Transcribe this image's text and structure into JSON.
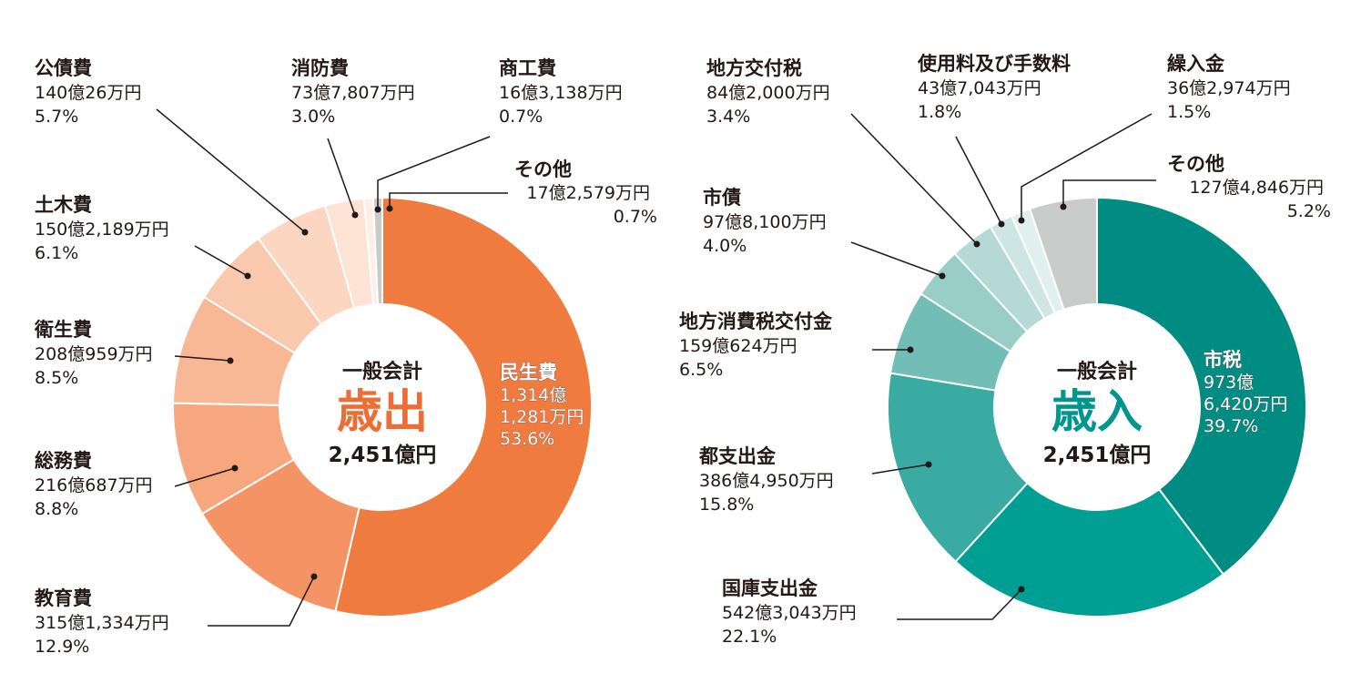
{
  "chart_data": [
    {
      "type": "pie",
      "title": "一般会計",
      "heading": "歳出",
      "total": "2,451億円",
      "colors": {
        "accent": "#ed6d35"
      },
      "slices": [
        {
          "name": "民生費",
          "amount": "1,314億1,281万円",
          "amount_lines": [
            "1,314億",
            "1,281万円"
          ],
          "percent_label": "53.6%",
          "value": 53.6,
          "color": "#f07b3f"
        },
        {
          "name": "教育費",
          "amount": "315億1,334万円",
          "percent_label": "12.9%",
          "value": 12.9,
          "color": "#f49464"
        },
        {
          "name": "総務費",
          "amount": "216億687万円",
          "percent_label": "8.8%",
          "value": 8.8,
          "color": "#f6a77e"
        },
        {
          "name": "衛生費",
          "amount": "208億959万円",
          "percent_label": "8.5%",
          "value": 8.5,
          "color": "#f8b896"
        },
        {
          "name": "土木費",
          "amount": "150億2,189万円",
          "percent_label": "6.1%",
          "value": 6.1,
          "color": "#fac8ad"
        },
        {
          "name": "公債費",
          "amount": "140億26万円",
          "percent_label": "5.7%",
          "value": 5.7,
          "color": "#fcd6c1"
        },
        {
          "name": "消防費",
          "amount": "73億7,807万円",
          "percent_label": "3.0%",
          "value": 3.0,
          "color": "#fde3d4"
        },
        {
          "name": "商工費",
          "amount": "16億3,138万円",
          "percent_label": "0.7%",
          "value": 0.7,
          "color": "#feefe6"
        },
        {
          "name": "その他",
          "amount": "17億2,579万円",
          "percent_label": "0.7%",
          "value": 0.7,
          "color": "#c9caca"
        }
      ]
    },
    {
      "type": "pie",
      "title": "一般会計",
      "heading": "歳入",
      "total": "2,451億円",
      "colors": {
        "accent": "#00958d"
      },
      "slices": [
        {
          "name": "市税",
          "amount": "973億6,420万円",
          "amount_lines": [
            "973億",
            "6,420万円"
          ],
          "percent_label": "39.7%",
          "value": 39.7,
          "color": "#008c82"
        },
        {
          "name": "国庫支出金",
          "amount": "542億3,043万円",
          "percent_label": "22.1%",
          "value": 22.1,
          "color": "#009e93"
        },
        {
          "name": "都支出金",
          "amount": "386億4,950万円",
          "percent_label": "15.8%",
          "value": 15.8,
          "color": "#3aaba2"
        },
        {
          "name": "地方消費税交付金",
          "amount": "159億624万円",
          "percent_label": "6.5%",
          "value": 6.5,
          "color": "#72bdb6"
        },
        {
          "name": "市債",
          "amount": "97億8,100万円",
          "percent_label": "4.0%",
          "value": 4.0,
          "color": "#98cdc8"
        },
        {
          "name": "地方交付税",
          "amount": "84億2,000万円",
          "percent_label": "3.4%",
          "value": 3.4,
          "color": "#b5dad6"
        },
        {
          "name": "使用料及び手数料",
          "amount": "43億7,043万円",
          "percent_label": "1.8%",
          "value": 1.8,
          "color": "#cde6e3"
        },
        {
          "name": "繰入金",
          "amount": "36億2,974万円",
          "percent_label": "1.5%",
          "value": 1.5,
          "color": "#e1f0ee"
        },
        {
          "name": "その他",
          "amount": "127億4,846万円",
          "percent_label": "5.2%",
          "value": 5.2,
          "color": "#c9caca"
        }
      ]
    }
  ]
}
